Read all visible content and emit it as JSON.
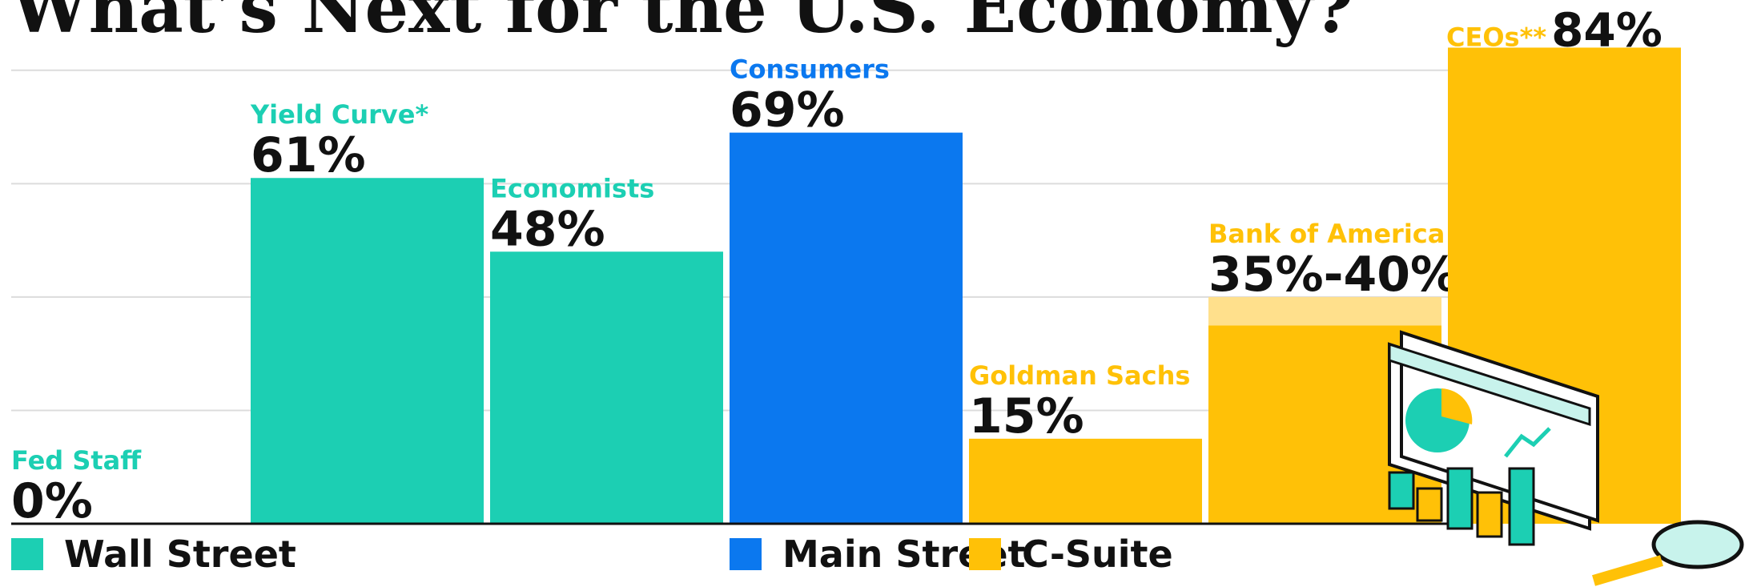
{
  "chart_data": {
    "type": "bar",
    "title": "What’s Next for the U.S. Economy?",
    "categories": [
      "Fed Staff",
      "Yield Curve*",
      "Economists",
      "Consumers",
      "Goldman Sachs",
      "Bank of America",
      "CEOs**"
    ],
    "values": [
      0,
      61,
      48,
      69,
      15,
      35,
      84
    ],
    "upper": [
      null,
      null,
      null,
      null,
      null,
      40,
      null
    ],
    "value_labels": [
      "0%",
      "61%",
      "48%",
      "69%",
      "15%",
      "35%-40%",
      "84%"
    ],
    "groups": [
      {
        "name": "Wall Street",
        "color": "#1ccfb3"
      },
      {
        "name": "Main Street",
        "color": "#0b78ef"
      },
      {
        "name": "C-Suite",
        "color": "#ffc107"
      }
    ],
    "group_of": [
      0,
      0,
      0,
      1,
      2,
      2,
      2
    ],
    "upper_color": "#ffe08c",
    "ylim": [
      0,
      92.4
    ],
    "yticks": [
      20,
      40,
      60,
      80
    ],
    "grid": true
  }
}
